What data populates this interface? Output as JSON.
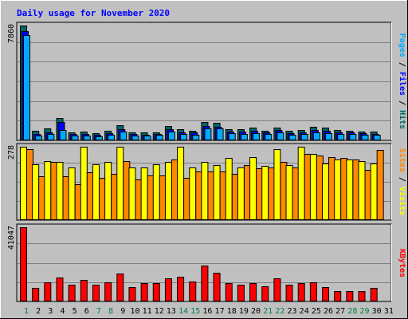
{
  "title": "Daily usage for November 2020",
  "chart_data": [
    {
      "type": "bar",
      "ymax_label": "7860",
      "ylim": [
        0,
        7860
      ],
      "x": [
        "1",
        "2",
        "3",
        "4",
        "5",
        "6",
        "7",
        "8",
        "9",
        "10",
        "11",
        "12",
        "13",
        "14",
        "15",
        "16",
        "17",
        "18",
        "19",
        "20",
        "21",
        "22",
        "23",
        "24",
        "25",
        "26",
        "27",
        "28",
        "29",
        "30",
        "31"
      ],
      "series": [
        {
          "name": "Hits",
          "color": "#006666",
          "values": [
            7860,
            650,
            830,
            1550,
            530,
            580,
            500,
            680,
            1030,
            560,
            530,
            560,
            1000,
            740,
            680,
            1270,
            1180,
            750,
            770,
            870,
            680,
            890,
            630,
            700,
            920,
            850,
            700,
            680,
            590,
            580,
            null
          ]
        },
        {
          "name": "Files",
          "color": "#0000ff",
          "values": [
            7500,
            460,
            560,
            1230,
            420,
            430,
            390,
            490,
            780,
            410,
            400,
            420,
            740,
            550,
            520,
            1000,
            940,
            580,
            580,
            650,
            520,
            690,
            490,
            540,
            700,
            650,
            540,
            530,
            470,
            450,
            null
          ]
        },
        {
          "name": "Pages",
          "color": "#00aaff",
          "values": [
            7200,
            340,
            410,
            720,
            330,
            350,
            300,
            400,
            600,
            340,
            340,
            360,
            610,
            440,
            400,
            800,
            800,
            470,
            460,
            480,
            420,
            550,
            370,
            420,
            560,
            500,
            440,
            430,
            390,
            370,
            null
          ]
        }
      ],
      "legend": "Pages / Files / Hits"
    },
    {
      "type": "bar",
      "ymax_label": "278",
      "ylim": [
        0,
        278
      ],
      "x": [
        "1",
        "2",
        "3",
        "4",
        "5",
        "6",
        "7",
        "8",
        "9",
        "10",
        "11",
        "12",
        "13",
        "14",
        "15",
        "16",
        "17",
        "18",
        "19",
        "20",
        "21",
        "22",
        "23",
        "24",
        "25",
        "26",
        "27",
        "28",
        "29",
        "30",
        "31"
      ],
      "series": [
        {
          "name": "Visits",
          "color": "#ffff00",
          "values": [
            278,
            212,
            225,
            220,
            200,
            278,
            212,
            222,
            278,
            200,
            200,
            212,
            220,
            278,
            200,
            220,
            210,
            235,
            200,
            240,
            205,
            270,
            210,
            278,
            250,
            215,
            230,
            230,
            225,
            215,
            null
          ]
        },
        {
          "name": "Sites",
          "color": "#ff8800",
          "values": [
            270,
            165,
            220,
            165,
            135,
            180,
            160,
            175,
            225,
            155,
            170,
            170,
            230,
            160,
            185,
            185,
            185,
            175,
            210,
            195,
            200,
            220,
            200,
            250,
            245,
            240,
            235,
            230,
            190,
            265,
            null
          ]
        }
      ],
      "legend": "Sites / Visits"
    },
    {
      "type": "bar",
      "ymax_label": "41047",
      "ylim": [
        0,
        41047
      ],
      "x": [
        "1",
        "2",
        "3",
        "4",
        "5",
        "6",
        "7",
        "8",
        "9",
        "10",
        "11",
        "12",
        "13",
        "14",
        "15",
        "16",
        "17",
        "18",
        "19",
        "20",
        "21",
        "22",
        "23",
        "24",
        "25",
        "26",
        "27",
        "28",
        "29",
        "30",
        "31"
      ],
      "series": [
        {
          "name": "KBytes",
          "color": "#ff0000",
          "values": [
            41047,
            7500,
            10800,
            13400,
            9100,
            12000,
            9100,
            10500,
            15400,
            7800,
            10000,
            10000,
            12600,
            13900,
            11200,
            19900,
            15800,
            10200,
            9300,
            10000,
            8600,
            12600,
            9200,
            10200,
            10500,
            7800,
            5800,
            5800,
            5800,
            7500,
            null
          ]
        }
      ],
      "legend": "KBytes"
    }
  ],
  "day_labels": [
    "1",
    "2",
    "3",
    "4",
    "5",
    "6",
    "7",
    "8",
    "9",
    "10",
    "11",
    "12",
    "13",
    "14",
    "15",
    "16",
    "17",
    "18",
    "19",
    "20",
    "21",
    "22",
    "23",
    "24",
    "25",
    "26",
    "27",
    "28",
    "29",
    "30",
    "31"
  ],
  "weekend_days": [
    "1",
    "7",
    "8",
    "14",
    "15",
    "21",
    "22",
    "28",
    "29"
  ],
  "colors": {
    "background": "#c0c0c0",
    "title": "#0000ff",
    "weekday_label": "#000000",
    "weekend_label": "#008040",
    "gridline": "#808080"
  }
}
